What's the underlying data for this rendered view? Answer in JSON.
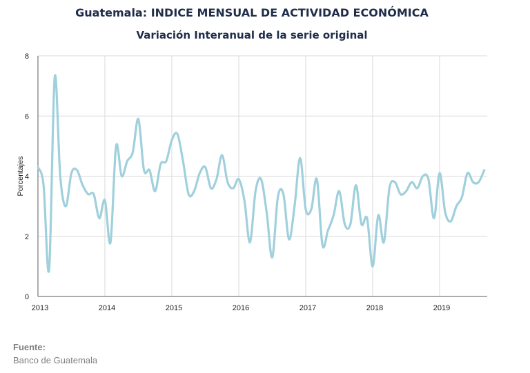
{
  "title": "Guatemala: INDICE MENSUAL DE ACTIVIDAD ECONÓMICA",
  "subtitle": "Variación Interanual de la serie original",
  "source": {
    "heading": "Fuente:",
    "text": "Banco de Guatemala"
  },
  "colors": {
    "line": "#9fd0dc",
    "grid": "#d9d9d9",
    "axis": "#595959"
  },
  "chart_data": {
    "type": "line",
    "title": "Guatemala: INDICE MENSUAL DE ACTIVIDAD ECONÓMICA",
    "subtitle": "Variación Interanual de la serie original",
    "xlabel": "",
    "ylabel": "Porcentajes",
    "ylim": [
      0,
      8
    ],
    "yticks": [
      0,
      2,
      4,
      6,
      8
    ],
    "xticks": [
      "2013",
      "2014",
      "2015",
      "2016",
      "2017",
      "2018",
      "2019"
    ],
    "grid": "vertical and horizontal",
    "x_start": "2013-01",
    "x": [
      "2013-01",
      "2013-02",
      "2013-03",
      "2013-04",
      "2013-05",
      "2013-06",
      "2013-07",
      "2013-08",
      "2013-09",
      "2013-10",
      "2013-11",
      "2013-12",
      "2014-01",
      "2014-02",
      "2014-03",
      "2014-04",
      "2014-05",
      "2014-06",
      "2014-07",
      "2014-08",
      "2014-09",
      "2014-10",
      "2014-11",
      "2014-12",
      "2015-01",
      "2015-02",
      "2015-03",
      "2015-04",
      "2015-05",
      "2015-06",
      "2015-07",
      "2015-08",
      "2015-09",
      "2015-10",
      "2015-11",
      "2015-12",
      "2016-01",
      "2016-02",
      "2016-03",
      "2016-04",
      "2016-05",
      "2016-06",
      "2016-07",
      "2016-08",
      "2016-09",
      "2016-10",
      "2016-11",
      "2016-12",
      "2017-01",
      "2017-02",
      "2017-03",
      "2017-04",
      "2017-05",
      "2017-06",
      "2017-07",
      "2017-08",
      "2017-09",
      "2017-10",
      "2017-11",
      "2017-12",
      "2018-01",
      "2018-02",
      "2018-03",
      "2018-04",
      "2018-05",
      "2018-06",
      "2018-07",
      "2018-08",
      "2018-09",
      "2018-10",
      "2018-11",
      "2018-12",
      "2019-01",
      "2019-02",
      "2019-03",
      "2019-04",
      "2019-05",
      "2019-06",
      "2019-07",
      "2019-08",
      "2019-09"
    ],
    "series": [
      {
        "name": "",
        "values": [
          4.3,
          3.7,
          0.9,
          7.3,
          4.0,
          3.0,
          4.1,
          4.2,
          3.7,
          3.4,
          3.4,
          2.6,
          3.2,
          1.8,
          5.0,
          4.0,
          4.5,
          4.8,
          5.9,
          4.2,
          4.2,
          3.5,
          4.4,
          4.5,
          5.2,
          5.4,
          4.5,
          3.4,
          3.5,
          4.1,
          4.3,
          3.6,
          3.9,
          4.7,
          3.8,
          3.6,
          3.9,
          3.2,
          1.8,
          3.5,
          3.9,
          2.8,
          1.3,
          3.3,
          3.4,
          1.9,
          3.0,
          4.6,
          2.9,
          2.9,
          3.9,
          1.7,
          2.2,
          2.7,
          3.5,
          2.4,
          2.4,
          3.7,
          2.4,
          2.6,
          1.0,
          2.7,
          1.8,
          3.6,
          3.8,
          3.4,
          3.5,
          3.8,
          3.6,
          4.0,
          3.9,
          2.6,
          4.1,
          2.8,
          2.5,
          3.0,
          3.3,
          4.1,
          3.8,
          3.8,
          4.2
        ]
      }
    ]
  }
}
